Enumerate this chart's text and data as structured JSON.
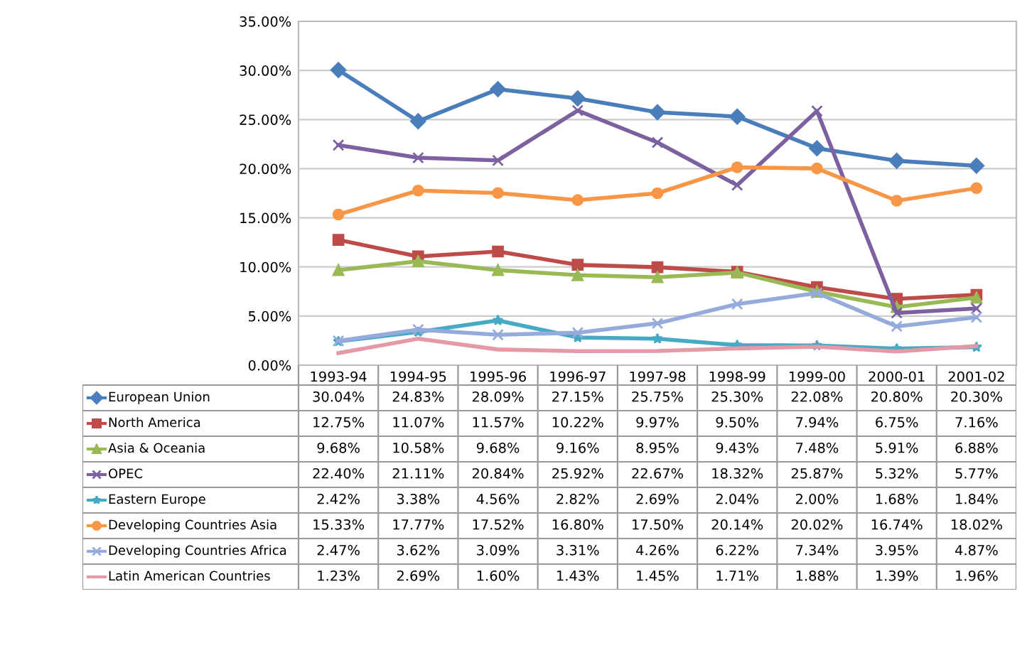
{
  "chart_data": {
    "type": "line",
    "categories": [
      "1993-94",
      "1994-95",
      "1995-96",
      "1996-97",
      "1997-98",
      "1998-99",
      "1999-00",
      "2000-01",
      "2001-02"
    ],
    "ylim": [
      0,
      35
    ],
    "yticks": [
      {
        "value": 0,
        "label": "0.00%"
      },
      {
        "value": 5,
        "label": "5.00%"
      },
      {
        "value": 10,
        "label": "10.00%"
      },
      {
        "value": 15,
        "label": "15.00%"
      },
      {
        "value": 20,
        "label": "20.00%"
      },
      {
        "value": 25,
        "label": "25.00%"
      },
      {
        "value": 30,
        "label": "30.00%"
      },
      {
        "value": 35,
        "label": "35.00%"
      }
    ],
    "grid": "y",
    "legend": "bottom left",
    "series": [
      {
        "name": "European Union",
        "color": "#4a7ebb",
        "marker": "diamond",
        "values": [
          30.04,
          24.83,
          28.09,
          27.15,
          25.75,
          25.3,
          22.08,
          20.8,
          20.3
        ],
        "value_labels": [
          "30.04%",
          "24.83%",
          "28.09%",
          "27.15%",
          "25.75%",
          "25.30%",
          "22.08%",
          "20.80%",
          "20.30%"
        ]
      },
      {
        "name": "North America",
        "color": "#be4b48",
        "marker": "square",
        "values": [
          12.75,
          11.07,
          11.57,
          10.22,
          9.97,
          9.5,
          7.94,
          6.75,
          7.16
        ],
        "value_labels": [
          "12.75%",
          "11.07%",
          "11.57%",
          "10.22%",
          "9.97%",
          "9.50%",
          "7.94%",
          "6.75%",
          "7.16%"
        ]
      },
      {
        "name": "Asia & Oceania",
        "color": "#98b954",
        "marker": "triangle",
        "values": [
          9.68,
          10.58,
          9.68,
          9.16,
          8.95,
          9.43,
          7.48,
          5.91,
          6.88
        ],
        "value_labels": [
          "9.68%",
          "10.58%",
          "9.68%",
          "9.16%",
          "8.95%",
          "9.43%",
          "7.48%",
          "5.91%",
          "6.88%"
        ]
      },
      {
        "name": "OPEC",
        "color": "#7d60a0",
        "marker": "cross",
        "values": [
          22.4,
          21.11,
          20.84,
          25.92,
          22.67,
          18.32,
          25.87,
          5.32,
          5.77
        ],
        "value_labels": [
          "22.40%",
          "21.11%",
          "20.84%",
          "25.92%",
          "22.67%",
          "18.32%",
          "25.87%",
          "5.32%",
          "5.77%"
        ]
      },
      {
        "name": "Eastern Europe",
        "color": "#46aac5",
        "marker": "star",
        "values": [
          2.42,
          3.38,
          4.56,
          2.82,
          2.69,
          2.04,
          2.0,
          1.68,
          1.84
        ],
        "value_labels": [
          "2.42%",
          "3.38%",
          "4.56%",
          "2.82%",
          "2.69%",
          "2.04%",
          "2.00%",
          "1.68%",
          "1.84%"
        ]
      },
      {
        "name": "Developing Countries Asia",
        "color": "#f79646",
        "marker": "circle",
        "values": [
          15.33,
          17.77,
          17.52,
          16.8,
          17.5,
          20.14,
          20.02,
          16.74,
          18.02
        ],
        "value_labels": [
          "15.33%",
          "17.77%",
          "17.52%",
          "16.80%",
          "17.50%",
          "20.14%",
          "20.02%",
          "16.74%",
          "18.02%"
        ]
      },
      {
        "name": "Developing Countries Africa",
        "color": "#95abdc",
        "marker": "cross",
        "values": [
          2.47,
          3.62,
          3.09,
          3.31,
          4.26,
          6.22,
          7.34,
          3.95,
          4.87
        ],
        "value_labels": [
          "2.47%",
          "3.62%",
          "3.09%",
          "3.31%",
          "4.26%",
          "6.22%",
          "7.34%",
          "3.95%",
          "4.87%"
        ]
      },
      {
        "name": "Latin American Countries",
        "color": "#e39aa6",
        "marker": "none",
        "values": [
          1.23,
          2.69,
          1.6,
          1.43,
          1.45,
          1.71,
          1.88,
          1.39,
          1.96
        ],
        "value_labels": [
          "1.23%",
          "2.69%",
          "1.60%",
          "1.43%",
          "1.45%",
          "1.71%",
          "1.88%",
          "1.39%",
          "1.96%"
        ]
      }
    ]
  }
}
